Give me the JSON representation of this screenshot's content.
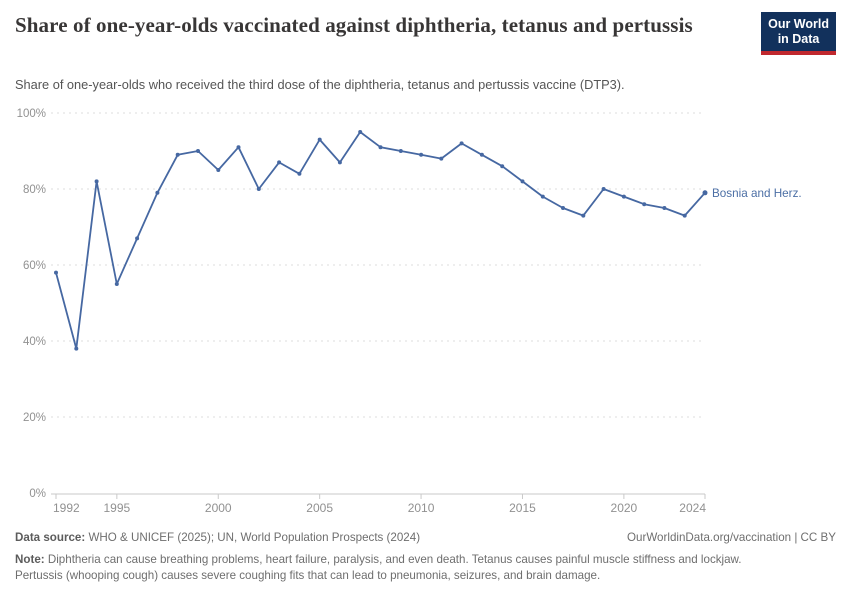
{
  "header": {
    "title": "Share of one-year-olds vaccinated against diphtheria, tetanus and pertussis",
    "subtitle": "Share of one-year-olds who received the third dose of the diphtheria, tetanus and pertussis vaccine (DTP3)."
  },
  "logo": {
    "line1": "Our World",
    "line2": "in Data"
  },
  "chart_data": {
    "type": "line",
    "title": "Share of one-year-olds vaccinated against diphtheria, tetanus and pertussis",
    "xlabel": "",
    "ylabel": "",
    "xlim": [
      1992,
      2024
    ],
    "ylim": [
      0,
      100
    ],
    "xticks": [
      1992,
      1995,
      2000,
      2005,
      2010,
      2015,
      2020,
      2024
    ],
    "yticks": [
      0,
      20,
      40,
      60,
      80,
      100
    ],
    "ytick_suffix": "%",
    "grid": "horizontal-dashed",
    "legend_position": "end-of-line-label",
    "series": [
      {
        "name": "Bosnia and Herz.",
        "x": [
          1992,
          1993,
          1994,
          1995,
          1996,
          1997,
          1998,
          1999,
          2000,
          2001,
          2002,
          2003,
          2004,
          2005,
          2006,
          2007,
          2008,
          2009,
          2010,
          2011,
          2012,
          2013,
          2014,
          2015,
          2016,
          2017,
          2018,
          2019,
          2020,
          2021,
          2022,
          2023,
          2024
        ],
        "values": [
          58,
          38,
          82,
          55,
          67,
          79,
          89,
          90,
          85,
          91,
          80,
          87,
          84,
          93,
          87,
          95,
          91,
          90,
          89,
          88,
          92,
          89,
          86,
          82,
          78,
          75,
          73,
          80,
          78,
          76,
          75,
          73,
          79
        ]
      }
    ]
  },
  "colors": {
    "line": "#4668a2",
    "end_label": "#4c6fa5",
    "grid": "#dedede",
    "axis": "#c9c9c9",
    "tick_text": "#919191",
    "logo_bg": "#12315c",
    "logo_stripe": "#c0282e"
  },
  "footer": {
    "datasource_label": "Data source:",
    "datasource_text": " WHO & UNICEF (2025); UN, World Population Prospects (2024)",
    "origin_text": "OurWorldinData.org/vaccination | CC BY",
    "note_label": "Note:",
    "note_text": " Diphtheria can cause breathing problems, heart failure, paralysis, and even death. Tetanus causes painful muscle stiffness and lockjaw. Pertussis (whooping cough) causes severe coughing fits that can lead to pneumonia, seizures, and brain damage."
  }
}
